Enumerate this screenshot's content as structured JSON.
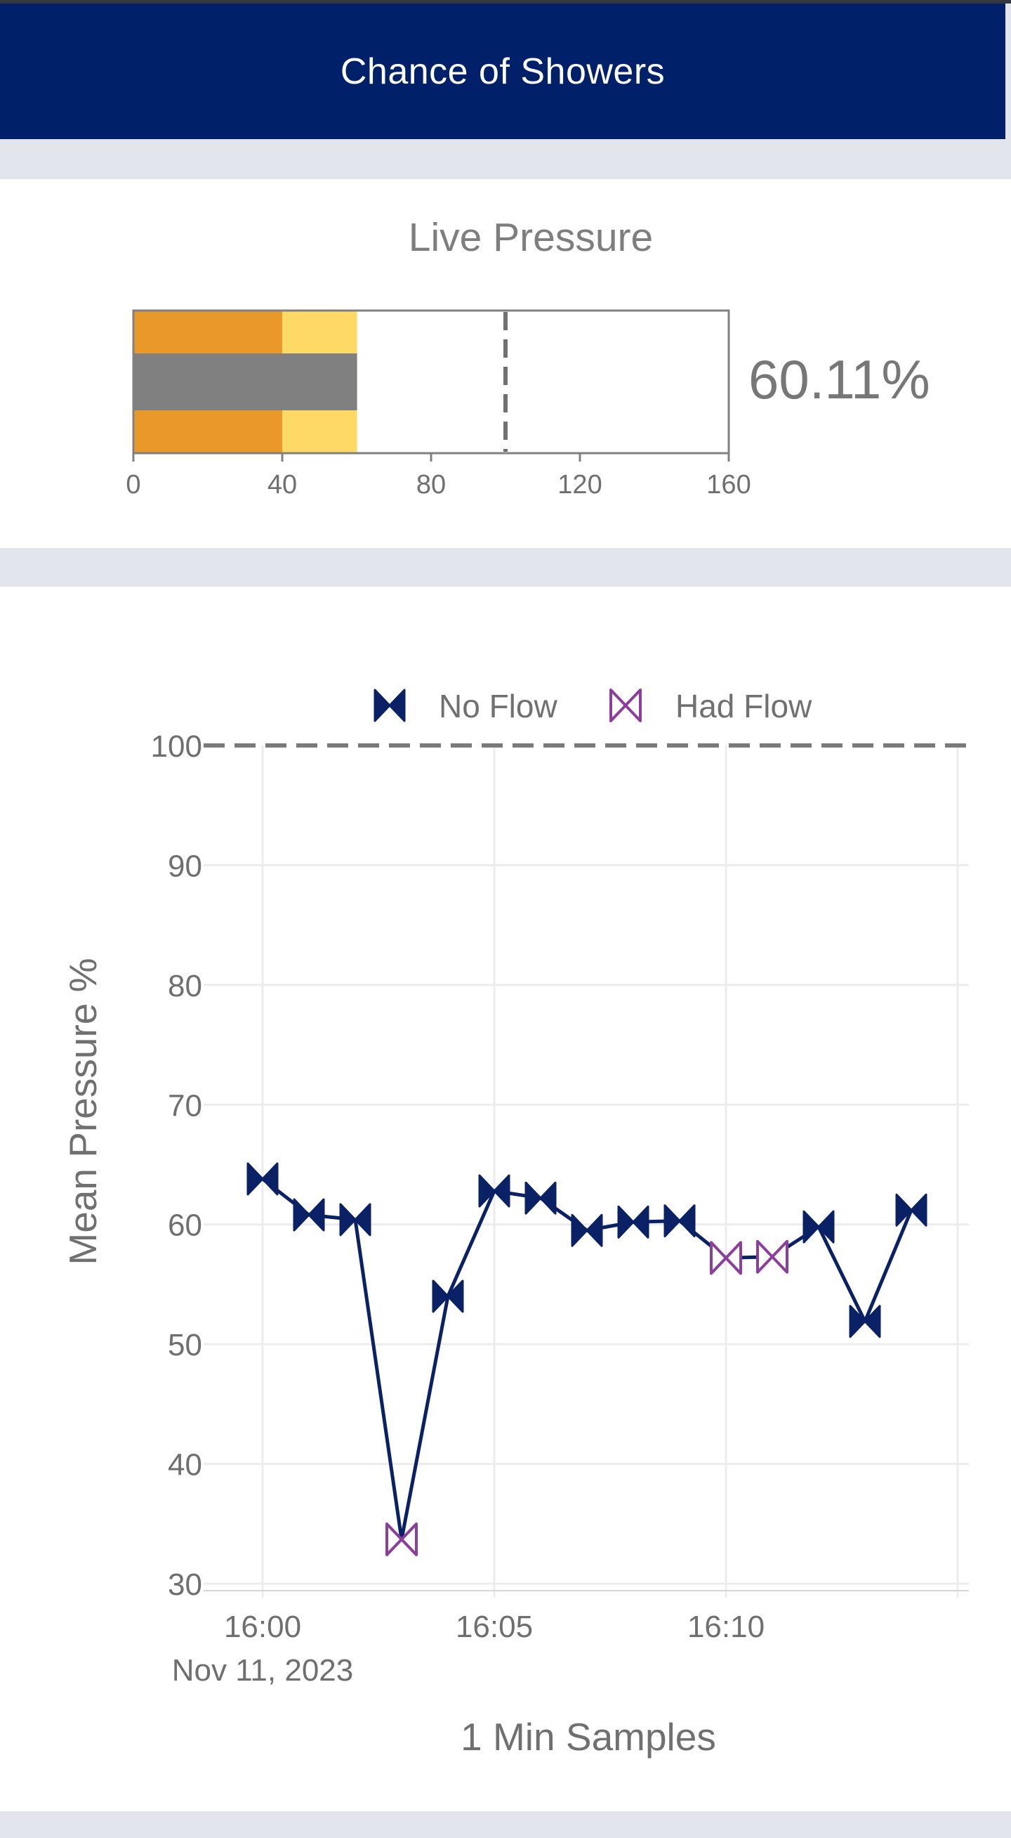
{
  "header": {
    "title": "Chance of Showers"
  },
  "gauge": {
    "title": "Live Pressure",
    "value_label": "60.11%",
    "value": 60.11,
    "range": [
      0,
      160
    ],
    "ticks": [
      "0",
      "40",
      "80",
      "120",
      "160"
    ],
    "bands": [
      {
        "from": 0,
        "to": 40,
        "color": "#e8992a"
      },
      {
        "from": 40,
        "to": 60.11,
        "color": "#ffd966"
      }
    ],
    "bar_color": "#808080",
    "threshold": 100
  },
  "chart_data": {
    "type": "line",
    "xlabel": "1 Min Samples",
    "ylabel": "Mean Pressure %",
    "x_tick_labels": [
      "16:00",
      "16:05",
      "16:10"
    ],
    "x_date_label": "Nov 11, 2023",
    "y_ticks": [
      "30",
      "40",
      "50",
      "60",
      "70",
      "80",
      "90",
      "100"
    ],
    "ylim": [
      30,
      100
    ],
    "threshold": 100,
    "grid": true,
    "legend": {
      "position": "top",
      "items": [
        {
          "label": "No Flow",
          "color": "#0a2166",
          "style": "filled-bowtie"
        },
        {
          "label": "Had Flow",
          "color": "#8b3f9a",
          "style": "open-bowtie"
        }
      ]
    },
    "x": [
      "16:00",
      "16:01",
      "16:02",
      "16:03",
      "16:04",
      "16:05",
      "16:06",
      "16:07",
      "16:08",
      "16:09",
      "16:10",
      "16:11",
      "16:12",
      "16:13",
      "16:14"
    ],
    "values": [
      63.8,
      60.8,
      60.4,
      33.7,
      54.0,
      62.8,
      62.2,
      59.5,
      60.2,
      60.3,
      57.2,
      57.3,
      59.8,
      51.9,
      61.2
    ],
    "flow": [
      "no",
      "no",
      "no",
      "had",
      "no",
      "no",
      "no",
      "no",
      "no",
      "no",
      "had",
      "had",
      "no",
      "no",
      "no"
    ],
    "series": [
      {
        "name": "No Flow",
        "color": "#0a2166"
      },
      {
        "name": "Had Flow",
        "color": "#8b3f9a"
      }
    ]
  }
}
